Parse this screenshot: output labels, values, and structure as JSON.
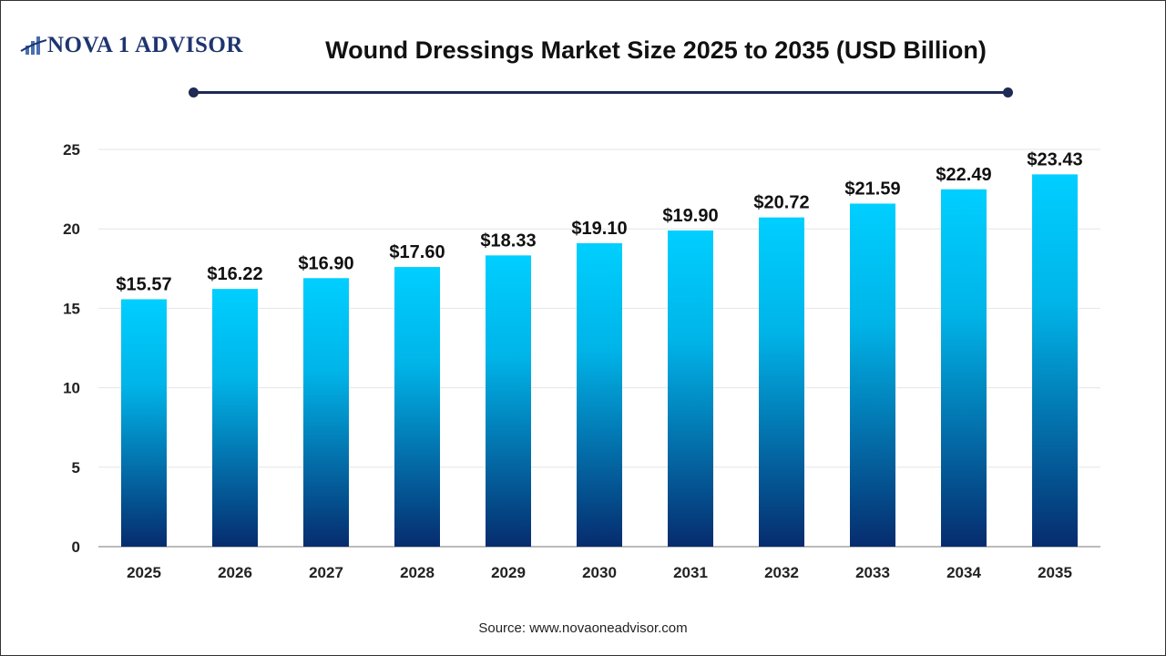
{
  "logo": {
    "text": "NOVA 1 ADVISOR"
  },
  "header": {
    "title": "Wound Dressings Market Size 2025 to 2035 (USD Billion)"
  },
  "footer": {
    "source": "Source: www.novaoneadvisor.com"
  },
  "colors": {
    "bar_top": "#00CFFF",
    "bar_bottom": "#062C6E",
    "title_rule": "#1f2a55"
  },
  "chart_data": {
    "type": "bar",
    "title": "Wound Dressings Market Size 2025 to 2035 (USD Billion)",
    "xlabel": "",
    "ylabel": "",
    "categories": [
      "2025",
      "2026",
      "2027",
      "2028",
      "2029",
      "2030",
      "2031",
      "2032",
      "2033",
      "2034",
      "2035"
    ],
    "values": [
      15.57,
      16.22,
      16.9,
      17.6,
      18.33,
      19.1,
      19.9,
      20.72,
      21.59,
      22.49,
      23.43
    ],
    "data_labels": [
      "$15.57",
      "$16.22",
      "$16.90",
      "$17.60",
      "$18.33",
      "$19.10",
      "$19.90",
      "$20.72",
      "$21.59",
      "$22.49",
      "$23.43"
    ],
    "ylim": [
      0,
      25
    ],
    "yticks": [
      0,
      5,
      10,
      15,
      20,
      25
    ],
    "grid": true,
    "legend": "none"
  }
}
